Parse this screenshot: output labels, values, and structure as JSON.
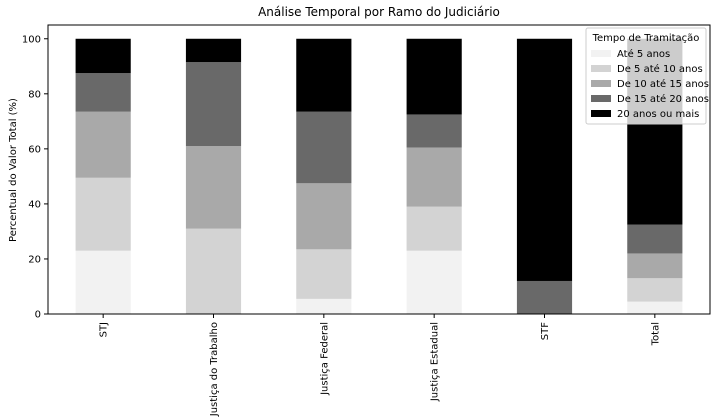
{
  "chart_data": {
    "type": "stacked_bar",
    "title": "Análise Temporal por Ramo do Judiciário",
    "y_label": "Percentual do Valor Total (%)",
    "categories": [
      "STJ",
      "Justiça do Trabalho",
      "Justiça Federal",
      "Justiça Estadual",
      "STF",
      "Total"
    ],
    "series": [
      {
        "name": "Até 5 anos",
        "color": "#f2f2f2",
        "values": [
          23,
          0,
          5.5,
          23,
          0,
          4.5
        ]
      },
      {
        "name": "De 5 até 10 anos",
        "color": "#d3d3d3",
        "values": [
          26.5,
          31,
          18,
          16,
          0,
          8.5
        ]
      },
      {
        "name": "De 10 até 15 anos",
        "color": "#a9a9a9",
        "values": [
          24,
          30,
          24,
          21.5,
          0,
          9
        ]
      },
      {
        "name": "De 15 até 20 anos",
        "color": "#696969",
        "values": [
          14,
          30.5,
          26,
          12,
          12,
          10.5
        ]
      },
      {
        "name": "20 anos ou mais",
        "color": "#000000",
        "values": [
          12.5,
          8.5,
          26.5,
          27.5,
          88,
          67.5
        ]
      }
    ],
    "legend_title": "Tempo de Tramitação",
    "legend_position": "upper right",
    "ylim": [
      0,
      105
    ],
    "yticks": [
      0,
      20,
      40,
      60,
      80,
      100
    ]
  }
}
